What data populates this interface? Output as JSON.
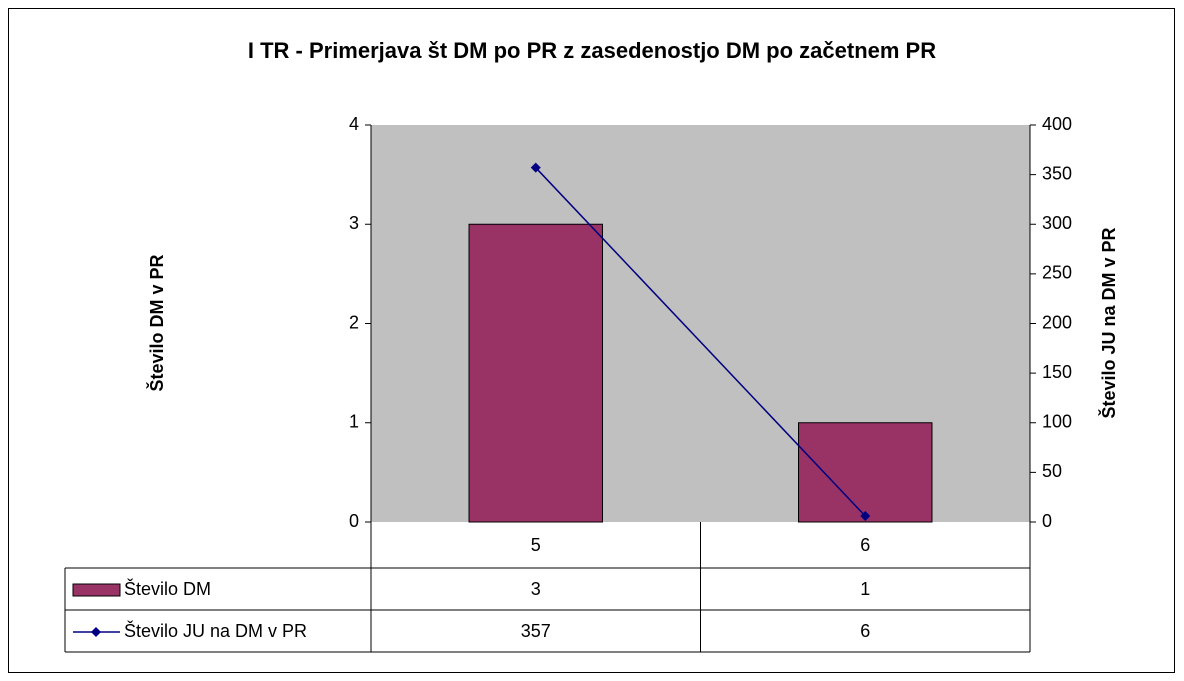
{
  "chart_data": {
    "type": "bar",
    "title": "I TR - Primerjava št DM po PR z zasedenostjo DM po začetnem PR",
    "y_label": "Število DM v PR",
    "y2_label": "Število JU na DM v PR",
    "categories": [
      "5",
      "6"
    ],
    "series": [
      {
        "name": "Število DM",
        "type": "bar",
        "color": "#993366",
        "values": [
          3,
          1
        ]
      },
      {
        "name": "Število JU na DM v PR",
        "type": "line",
        "axis": "y2",
        "color": "#000080",
        "values": [
          357,
          6
        ]
      }
    ],
    "ylim": [
      0,
      4
    ],
    "yticks": [
      0,
      1,
      2,
      3,
      4
    ],
    "y2lim": [
      0,
      400
    ],
    "y2ticks": [
      0,
      50,
      100,
      150,
      200,
      250,
      300,
      350,
      400
    ],
    "plot_background": "#c0c0c0",
    "data_table": true
  }
}
